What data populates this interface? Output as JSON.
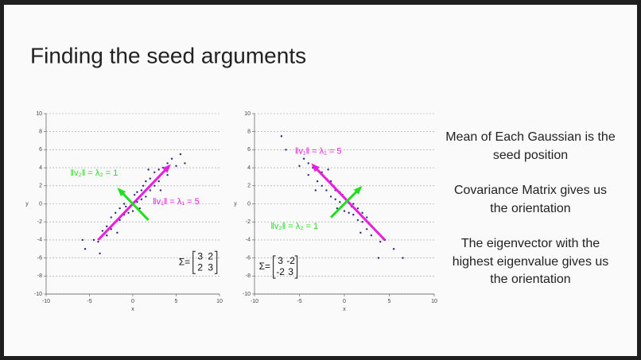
{
  "slide": {
    "title": "Finding the seed arguments",
    "notes": [
      "Mean of Each Gaussian is the seed position",
      "Covariance Matrix gives us the orientation",
      "The eigenvector with the highest eigenvalue gives us the orientation"
    ]
  },
  "chart_data": [
    {
      "type": "scatter",
      "xlabel": "x",
      "ylabel": "y",
      "color": "#2a2a78",
      "xlim": [
        -10,
        10
      ],
      "xticks": [
        -10,
        -5,
        0,
        5,
        10
      ],
      "ylim": [
        -10,
        10
      ],
      "yticks": [
        -10,
        -8,
        -6,
        -4,
        -2,
        0,
        2,
        4,
        6,
        8,
        10
      ],
      "grid": true,
      "x": [
        -4.5,
        -4,
        -3.5,
        -3,
        -3,
        -2.5,
        -2.5,
        -2,
        -2,
        -1.5,
        -1.5,
        -1,
        -1,
        -0.8,
        -0.5,
        -0.5,
        0,
        0,
        0.2,
        0.5,
        0.5,
        1,
        1,
        1.2,
        1.5,
        1.5,
        2,
        2,
        2.5,
        2.5,
        3,
        3,
        3.5,
        4,
        4,
        4.5,
        5,
        -5.5,
        -5.8,
        5.5,
        6,
        -3.8,
        1.8,
        -1.8,
        0.8,
        3.2
      ],
      "values": [
        -4,
        -4.2,
        -3,
        -2.5,
        -3.5,
        -1.5,
        -2.8,
        -2,
        -1,
        -1.8,
        -0.5,
        -1.2,
        0,
        -0.3,
        -1,
        0.5,
        0,
        -0.8,
        1,
        0.2,
        1.3,
        0.5,
        1.5,
        2,
        0.8,
        2.5,
        1.5,
        2.8,
        2,
        3.5,
        2.5,
        3.8,
        4,
        4.5,
        3.2,
        5,
        4.2,
        -5,
        -4,
        5.5,
        4.5,
        -5.5,
        3.8,
        -3.2,
        -0.5,
        1.5
      ],
      "vectors": [
        {
          "color": "#e81ee0",
          "from": [
            -4,
            -4
          ],
          "to": [
            4.2,
            4.2
          ]
        },
        {
          "color": "#22dd22",
          "from": [
            1.8,
            -1.8
          ],
          "to": [
            -1.6,
            1.6
          ]
        }
      ],
      "annotations": [
        {
          "text": "‖v₂‖ = λ₂ = 1",
          "color": "#22dd22"
        },
        {
          "text": "‖v₁‖ = λ₁ = 5",
          "color": "#e81ee0"
        },
        {
          "text": "Σ=",
          "color": "#111",
          "matrix": [
            [
              3,
              2
            ],
            [
              2,
              3
            ]
          ]
        }
      ]
    },
    {
      "type": "scatter",
      "xlabel": "x",
      "ylabel": "y",
      "color": "#2a2a78",
      "xlim": [
        -10,
        10
      ],
      "xticks": [
        -10,
        -5,
        0,
        5,
        10
      ],
      "ylim": [
        -10,
        10
      ],
      "yticks": [
        -10,
        -8,
        -6,
        -4,
        -2,
        0,
        2,
        4,
        6,
        8,
        10
      ],
      "grid": true,
      "x": [
        4.5,
        4,
        3.5,
        3,
        3,
        2.5,
        2.5,
        2,
        2,
        1.5,
        1.5,
        1,
        1,
        0.8,
        0.5,
        0.5,
        0,
        0,
        -0.2,
        -0.5,
        -0.5,
        -1,
        -1,
        -1.2,
        -1.5,
        -1.5,
        -2,
        -2,
        -2.5,
        -2.5,
        -3,
        -3,
        -3.5,
        -4,
        -4,
        -4.5,
        -5,
        5.5,
        6.5,
        -6.5,
        -7,
        3.8,
        -1.8,
        1.8,
        -0.8,
        -3.2
      ],
      "values": [
        -4,
        -4.2,
        -3,
        -2.5,
        -3.5,
        -1.5,
        -2.8,
        -2,
        -1,
        -1.8,
        -0.5,
        -1.2,
        0,
        -0.3,
        -1,
        0.5,
        0,
        -0.8,
        1,
        0.2,
        1.3,
        0.5,
        1.5,
        2,
        0.8,
        2.5,
        1.5,
        2.8,
        2,
        3.5,
        2.5,
        3.8,
        4,
        4.5,
        3.2,
        5,
        4.2,
        -5,
        -6,
        6,
        7.5,
        -6,
        3.8,
        -3.2,
        -0.5,
        1.5
      ],
      "vectors": [
        {
          "color": "#e81ee0",
          "from": [
            4.5,
            -4
          ],
          "to": [
            -3.5,
            4.3
          ]
        },
        {
          "color": "#22dd22",
          "from": [
            -1.5,
            -1.5
          ],
          "to": [
            1.8,
            1.8
          ]
        }
      ],
      "annotations": [
        {
          "text": "‖v₁‖ = λ₁ = 5",
          "color": "#e81ee0"
        },
        {
          "text": "‖v₂‖ = λ₂ = 1",
          "color": "#22dd22"
        },
        {
          "text": "Σ=",
          "color": "#111",
          "matrix": [
            [
              3,
              -2
            ],
            [
              -2,
              3
            ]
          ]
        }
      ]
    }
  ]
}
